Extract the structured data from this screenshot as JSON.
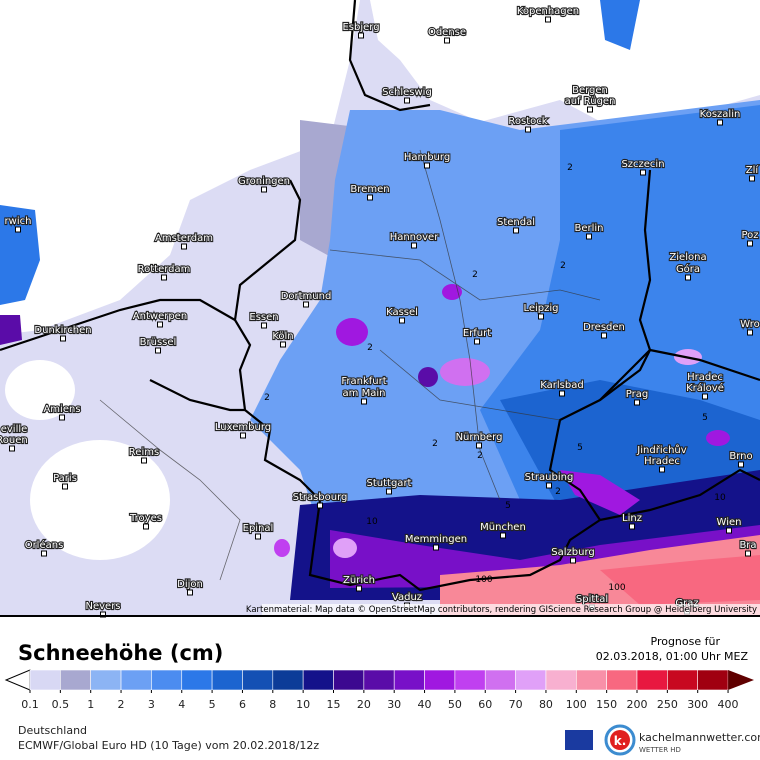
{
  "map": {
    "cities": [
      "Esbjerg",
      "Odense",
      "Kopenhagen",
      "Schleswig",
      "Bergen",
      "auf Rügen",
      "Rostock",
      "Koszalin",
      "Hamburg",
      "Szczecin",
      "Groningen",
      "Bremen",
      "Stendal",
      "Amsterdam",
      "Hannover",
      "Berlin",
      "Rotterdam",
      "Zielona",
      "Góra",
      "Dortmund",
      "Poz",
      "Antwerpen",
      "Essen",
      "Kassel",
      "Leipzig",
      "Dresden",
      "Dunkirchen",
      "Brüssel",
      "Köln",
      "Erfurt",
      "Wro",
      "Frankfurt",
      "am Main",
      "Karlsbad",
      "Hradec",
      "Králové",
      "Amiens",
      "Luxemburg",
      "Prag",
      "Nürnberg",
      "Jindřichův",
      "Hradec",
      "Brno",
      "Reims",
      "Paris",
      "Straubing",
      "Stuttgart",
      "Strasbourg",
      "Linz",
      "Troyes",
      "München",
      "Wien",
      "Memmingen",
      "Epinal",
      "Orléans",
      "Salzburg",
      "Zürich",
      "Dijon",
      "Vaduz",
      "Spittal",
      "Graz",
      "Nevers",
      "Bra",
      "Zlí",
      "rwich",
      "eville",
      "Rouen"
    ],
    "contour_labels": [
      "2",
      "2",
      "2",
      "2",
      "2",
      "2",
      "2",
      "2",
      "5",
      "5",
      "5",
      "10",
      "10",
      "100",
      "100"
    ],
    "attribution": "Kartenmaterial: Map data © OpenStreetMap contributors, rendering GIScience Research Group @ Heidelberg University"
  },
  "legend": {
    "title": "Schneehöhe (cm)",
    "forecast_label": "Prognose für",
    "forecast_time": "02.03.2018, 01:00 Uhr MEZ",
    "ticks": [
      0.1,
      0.5,
      1,
      2,
      3,
      4,
      5,
      6,
      8,
      10,
      15,
      20,
      30,
      40,
      50,
      60,
      70,
      80,
      100,
      150,
      200,
      250,
      300,
      400
    ],
    "colors": [
      "#d8d8f4",
      "#a8a8d0",
      "#8cb4f4",
      "#6ca0f4",
      "#4c8cf0",
      "#2c78e8",
      "#1c64d0",
      "#1450b4",
      "#0c3c98",
      "#14128a",
      "#3c0890",
      "#5a0ca8",
      "#7810c8",
      "#a018e0",
      "#c040f0",
      "#d070f0",
      "#e0a0f8",
      "#f8b0d0",
      "#f890a8",
      "#f86880",
      "#e81840",
      "#c80820",
      "#a00010",
      "#600000"
    ]
  },
  "footer": {
    "region": "Deutschland",
    "model": "ECMWF/Global Euro HD (10 Tage) vom 20.02.2018/12z",
    "logo_mark": "k.",
    "site": "kachelmannwetter.com",
    "brand": "WETTER HD"
  }
}
